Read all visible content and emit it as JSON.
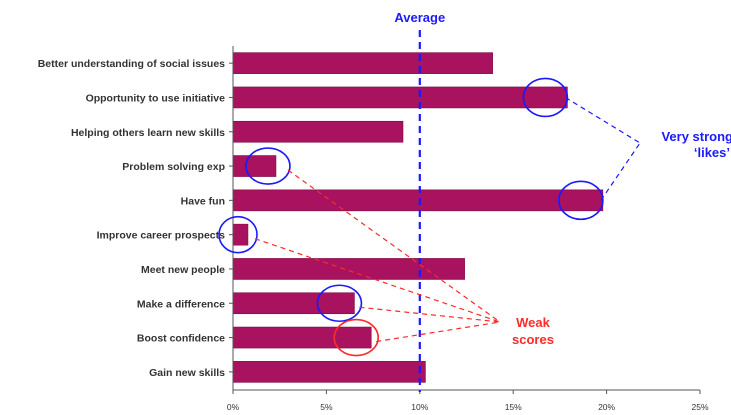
{
  "chart_data": {
    "type": "bar",
    "orientation": "horizontal",
    "categories": [
      "Better understanding of social issues",
      "Opportunity to use initiative",
      "Helping others learn new skills",
      "Problem solving exp",
      "Have fun",
      "Improve career prospects",
      "Meet new people",
      "Make a difference",
      "Boost confidence",
      "Gain new skills"
    ],
    "values": [
      13.9,
      17.9,
      9.1,
      2.3,
      19.8,
      0.8,
      12.4,
      6.5,
      7.4,
      10.3
    ],
    "xlim": [
      0,
      25
    ],
    "xticks": [
      "0%",
      "5%",
      "10%",
      "15%",
      "20%",
      "25%"
    ],
    "average_value": 10,
    "average_label": "Average",
    "grid": false,
    "colors": {
      "bar": "#a8125e",
      "bar_edge": "#7d0a44",
      "average_line": "#1a1aff",
      "strong": "#1a1aff",
      "weak": "#ff2a2a"
    },
    "annotations": {
      "strong_label_line1": "Very strong",
      "strong_label_line2": "‘likes’",
      "strong_categories": [
        "Opportunity to use initiative",
        "Have fun"
      ],
      "weak_label_line1": "Weak",
      "weak_label_line2": "scores",
      "weak_categories": [
        "Problem solving exp",
        "Improve career prospects",
        "Make a difference",
        "Boost confidence"
      ]
    }
  }
}
